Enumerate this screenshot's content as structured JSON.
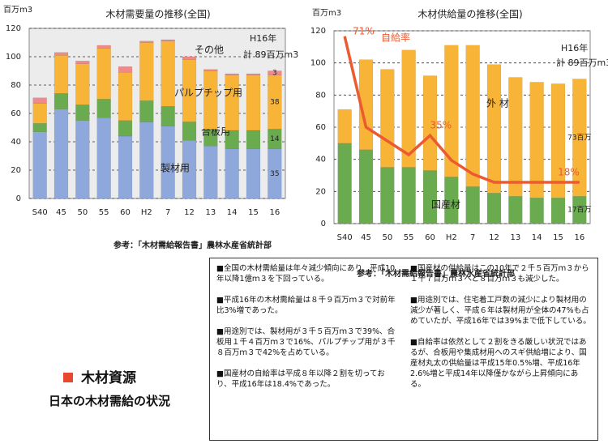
{
  "chart_data": [
    {
      "type": "bar",
      "stacked": true,
      "title": "木材需要量の推移(全国)",
      "y_unit": "百万m3",
      "categories": [
        "S40",
        "45",
        "50",
        "55",
        "60",
        "H2",
        "7",
        "12",
        "13",
        "14",
        "15",
        "16"
      ],
      "series": [
        {
          "name": "製材用",
          "color": "#8fa8dc",
          "values": [
            47,
            63,
            55,
            57,
            44,
            54,
            51,
            41,
            37,
            35,
            35,
            35
          ]
        },
        {
          "name": "合板用",
          "color": "#6bab4f",
          "values": [
            6,
            11,
            11,
            13,
            11,
            15,
            14,
            13,
            12,
            13,
            13,
            14
          ]
        },
        {
          "name": "パルプチップ用",
          "color": "#f8b437",
          "values": [
            14,
            27,
            29,
            36,
            34,
            41,
            46,
            44,
            41,
            39,
            39,
            38
          ]
        },
        {
          "name": "その他",
          "color": "#f08a8a",
          "values": [
            4,
            2,
            2,
            2,
            4,
            1,
            1,
            2,
            1,
            1,
            1,
            3
          ]
        }
      ],
      "ylim": [
        0,
        120
      ],
      "yticks": [
        0,
        20,
        40,
        60,
        80,
        100,
        120
      ],
      "grid": true,
      "annotations": [
        "H16年",
        "計 89百万m3"
      ],
      "source": "参考：「木材需給報告書」農林水産省統計部"
    },
    {
      "type": "bar",
      "stacked": true,
      "title": "木材供給量の推移(全国)",
      "y_unit": "百万m3",
      "categories": [
        "S40",
        "45",
        "50",
        "55",
        "60",
        "H2",
        "7",
        "12",
        "13",
        "14",
        "15",
        "16"
      ],
      "series": [
        {
          "name": "国産材",
          "color": "#6bab4f",
          "values": [
            50,
            46,
            35,
            35,
            33,
            29,
            23,
            19,
            17,
            16,
            16,
            17
          ],
          "value_labels": [
            null,
            null,
            null,
            null,
            null,
            null,
            null,
            null,
            null,
            null,
            null,
            "17百万"
          ]
        },
        {
          "name": "外 材",
          "color": "#f8b437",
          "values": [
            21,
            56,
            61,
            73,
            59,
            82,
            88,
            80,
            74,
            72,
            71,
            73
          ],
          "value_labels": [
            null,
            null,
            null,
            null,
            null,
            null,
            null,
            null,
            null,
            null,
            null,
            "73百万"
          ]
        },
        {
          "name": "自給率",
          "type": "line",
          "axis": "y2",
          "color": "#ec5a32",
          "values": [
            71,
            38,
            33,
            28,
            35,
            26,
            21,
            18,
            18,
            18,
            18,
            18
          ],
          "value_labels": [
            "71%",
            null,
            null,
            null,
            "35%",
            null,
            null,
            null,
            null,
            null,
            null,
            "18%"
          ]
        }
      ],
      "ylim": [
        0,
        120
      ],
      "yticks": [
        0,
        20,
        40,
        60,
        80,
        100,
        120
      ],
      "y2lim": [
        3,
        73
      ],
      "grid": true,
      "annotations": [
        "H16年",
        "計 89百万m3"
      ],
      "source": "参考：「木材需給報告書」農林水産省統計部"
    }
  ],
  "heading": {
    "title": "木材資源",
    "subtitle": "日本の木材需給の状況"
  },
  "notes": {
    "left": [
      "■全国の木材需給量は年々減少傾向にあり、平成10年以降1億ｍ３を下回っている。",
      "■平成16年の木材需給量は８千９百万ｍ３で対前年比3%増であった。",
      "■用途別では、製材用が３千５百万ｍ３で39%、合板用１千４百万ｍ３で16%、パルプチップ用が３千８百万ｍ３で42%を占めている。",
      "■国産材の自給率は平成８年以降２割を切っており、平成16年は18.4%であった。"
    ],
    "right": [
      "■国産材の供給量はこの10年で２千５百万ｍ３から１千７百万ｍ３へと８百万ｍ３も減少した。",
      "■用途別では、住宅着工戸数の減少により製材用の減少が著しく、平成６年は製材用が全体の47%も占めていたが、平成16年では39%まで低下している。",
      "■自給率は依然として２割をきる厳しい状況ではあるが、合板用や集成材用へのスギ供給増により、国産材丸太の供給量は平成15年0.5%増、平成16年2.6%増と平成14年以降僅かながら上昇傾向にある。"
    ]
  }
}
